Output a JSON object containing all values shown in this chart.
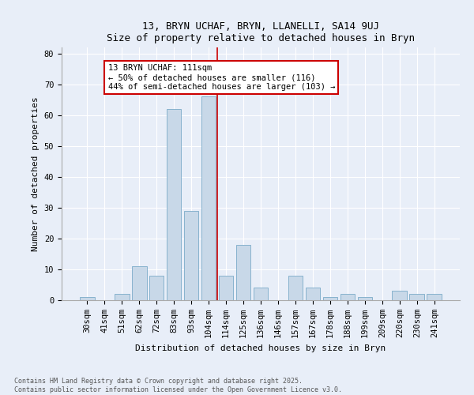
{
  "title1": "13, BRYN UCHAF, BRYN, LLANELLI, SA14 9UJ",
  "title2": "Size of property relative to detached houses in Bryn",
  "xlabel": "Distribution of detached houses by size in Bryn",
  "ylabel": "Number of detached properties",
  "bar_labels": [
    "30sqm",
    "41sqm",
    "51sqm",
    "62sqm",
    "72sqm",
    "83sqm",
    "93sqm",
    "104sqm",
    "114sqm",
    "125sqm",
    "136sqm",
    "146sqm",
    "157sqm",
    "167sqm",
    "178sqm",
    "188sqm",
    "199sqm",
    "209sqm",
    "220sqm",
    "230sqm",
    "241sqm"
  ],
  "bar_values": [
    1,
    0,
    2,
    11,
    8,
    62,
    29,
    66,
    8,
    18,
    4,
    0,
    8,
    4,
    1,
    2,
    1,
    0,
    3,
    2,
    2
  ],
  "bar_color": "#c8d8e8",
  "bar_edge_color": "#7aaac8",
  "vline_x": 7.5,
  "vline_color": "#cc0000",
  "annotation_text": "13 BRYN UCHAF: 111sqm\n← 50% of detached houses are smaller (116)\n44% of semi-detached houses are larger (103) →",
  "annotation_box_edgecolor": "#cc0000",
  "ylim": [
    0,
    82
  ],
  "yticks": [
    0,
    10,
    20,
    30,
    40,
    50,
    60,
    70,
    80
  ],
  "footnote": "Contains HM Land Registry data © Crown copyright and database right 2025.\nContains public sector information licensed under the Open Government Licence v3.0.",
  "bg_color": "#e8eef8",
  "plot_bg_color": "#e8eef8",
  "title_fontsize": 9,
  "axis_label_fontsize": 8,
  "tick_fontsize": 7.5,
  "annotation_fontsize": 7.5,
  "footnote_fontsize": 6
}
